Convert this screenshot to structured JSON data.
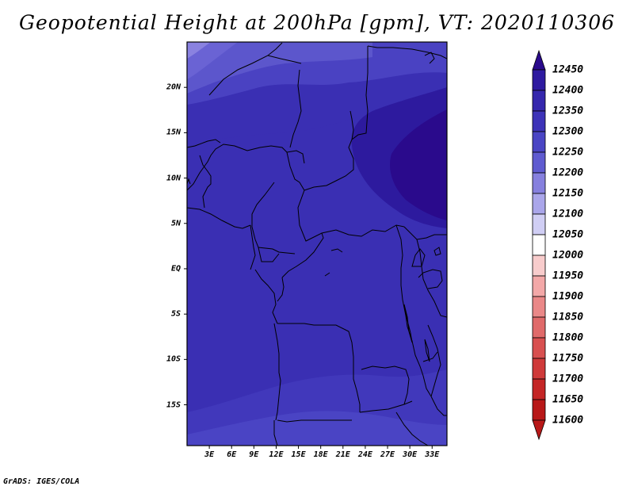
{
  "title": "Geopotential Height at 200hPa [gpm], VT: 2020110306",
  "footer": "GrADS: IGES/COLA",
  "map": {
    "lat_labels": [
      "20N",
      "15N",
      "10N",
      "5N",
      "EQ",
      "5S",
      "10S",
      "15S"
    ],
    "lat_values": [
      20,
      15,
      10,
      5,
      0,
      -5,
      -10,
      -15
    ],
    "lon_labels": [
      "3E",
      "6E",
      "9E",
      "12E",
      "15E",
      "18E",
      "21E",
      "24E",
      "27E",
      "30E",
      "33E"
    ],
    "lon_values": [
      3,
      6,
      9,
      12,
      15,
      18,
      21,
      24,
      27,
      30,
      33
    ],
    "lat_range": [
      -19.5,
      25
    ],
    "lon_range": [
      0,
      35
    ]
  },
  "colorbar": {
    "levels": [
      "12450",
      "12400",
      "12350",
      "12300",
      "12250",
      "12200",
      "12150",
      "12100",
      "12050",
      "12000",
      "11950",
      "11900",
      "11850",
      "11800",
      "11750",
      "11700",
      "11650",
      "11600"
    ],
    "colors": [
      "#2a0a8c",
      "#2e1aa0",
      "#3527ad",
      "#3d33b8",
      "#4a45c4",
      "#5f5bd0",
      "#8680de",
      "#aaa6ea",
      "#d0cef4",
      "#ffffff",
      "#f8cccc",
      "#f3a8a8",
      "#ea8888",
      "#e06a6a",
      "#d85050",
      "#cf3a3a",
      "#c42626",
      "#b81818"
    ]
  }
}
